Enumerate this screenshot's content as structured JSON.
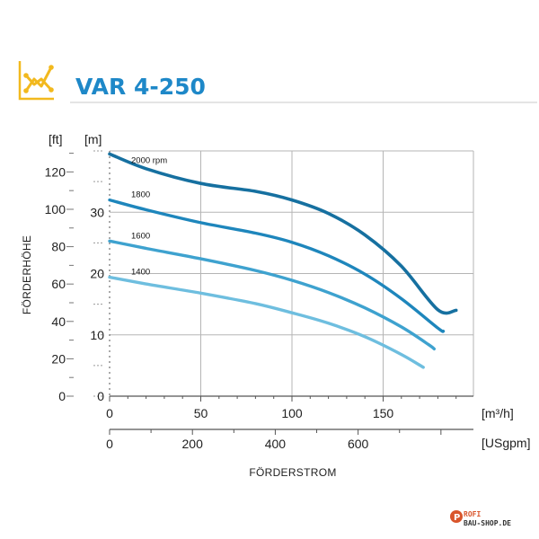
{
  "title": "VAR 4-250",
  "colors": {
    "accent_gold": "#F2B91E",
    "title_blue": "#1E88C8",
    "grid": "#b5b5b5",
    "axis": "#555555",
    "curve_2000": "#1670A0",
    "curve_1800": "#1E86BC",
    "curve_1600": "#3EA2CF",
    "curve_1400": "#6EBEDF"
  },
  "icon": "line-chart-icon",
  "watermark": {
    "line1": "ROFI",
    "line2": "BAU-SHOP.DE"
  },
  "chart_data": {
    "type": "line",
    "title": "VAR 4-250",
    "xlabel": "FÖRDERSTROM",
    "ylabel": "FÖRDERHÖHE",
    "x_unit": "[m³/h]",
    "x_unit_secondary": "[USgpm]",
    "y_unit": "[m]",
    "y_unit_secondary": "[ft]",
    "xlim": [
      0,
      195
    ],
    "ylim": [
      0,
      40
    ],
    "x_ticks": [
      "0",
      "50",
      "100",
      "150"
    ],
    "x_ticks_secondary": [
      "0",
      "200",
      "400",
      "600"
    ],
    "y_ticks": [
      "0",
      "10",
      "20",
      "30"
    ],
    "y_ticks_secondary": [
      "0",
      "20",
      "40",
      "60",
      "80",
      "100",
      "120"
    ],
    "grid": true,
    "series": [
      {
        "name": "2000 rpm",
        "x": [
          0,
          20,
          50,
          80,
          100,
          120,
          140,
          160,
          180,
          190
        ],
        "y": [
          39.5,
          37.1,
          34.7,
          33.4,
          32.0,
          29.8,
          26.3,
          21.2,
          14.1,
          14.0
        ]
      },
      {
        "name": "1800",
        "x": [
          0,
          20,
          50,
          80,
          100,
          120,
          140,
          160,
          180,
          183
        ],
        "y": [
          32.0,
          30.4,
          28.3,
          26.6,
          25.1,
          22.9,
          19.9,
          15.9,
          11.1,
          10.6
        ]
      },
      {
        "name": "1600",
        "x": [
          0,
          20,
          50,
          80,
          100,
          120,
          140,
          160,
          175,
          178
        ],
        "y": [
          25.3,
          24.1,
          22.4,
          20.5,
          18.9,
          16.9,
          14.4,
          11.3,
          8.4,
          7.7
        ]
      },
      {
        "name": "1400",
        "x": [
          0,
          20,
          50,
          80,
          100,
          120,
          140,
          160,
          172
        ],
        "y": [
          19.4,
          18.3,
          16.8,
          15.1,
          13.6,
          11.9,
          9.7,
          6.8,
          4.7
        ]
      }
    ]
  }
}
